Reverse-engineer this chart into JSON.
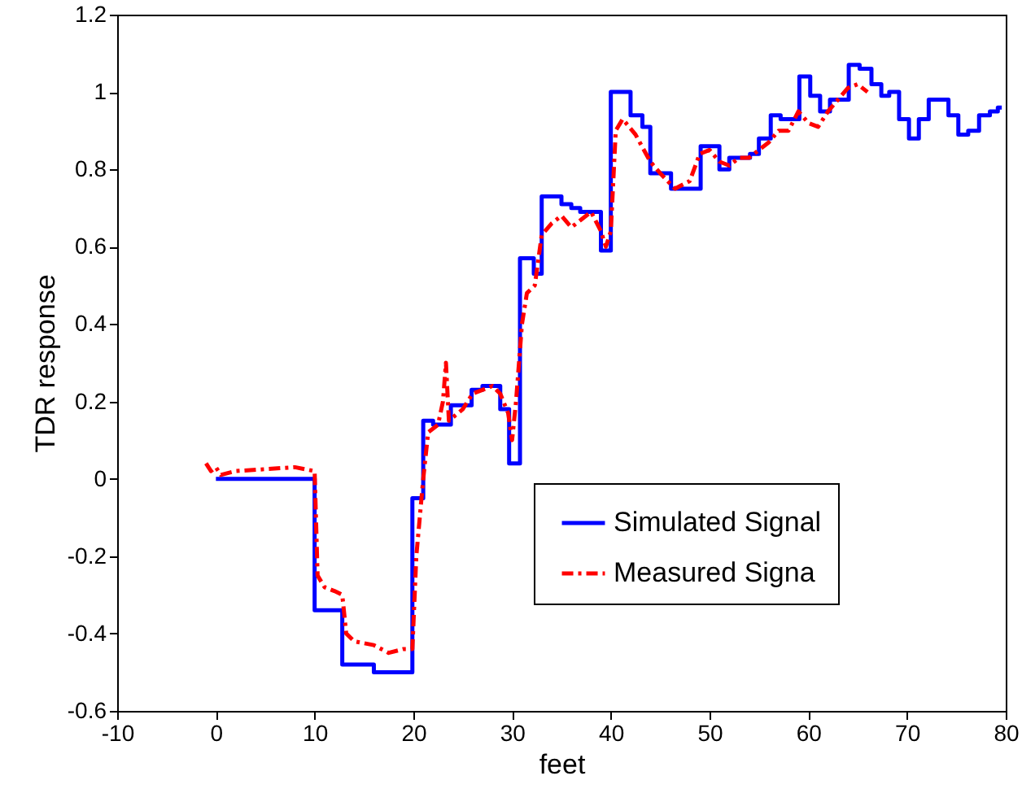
{
  "chart_data": {
    "type": "line",
    "xlabel": "feet",
    "ylabel": "TDR response",
    "xlim": [
      -10,
      80
    ],
    "xticks": [
      -10,
      0,
      10,
      20,
      30,
      40,
      50,
      60,
      70,
      80
    ],
    "ylim": [
      -0.6,
      1.2
    ],
    "yticks": [
      -0.6,
      -0.4,
      -0.2,
      0,
      0.2,
      0.4,
      0.6,
      0.8,
      1,
      1.2
    ],
    "grid": false,
    "legend": "bottom right",
    "series": [
      {
        "name": "Simulated Signal",
        "type": "step",
        "color": "#0000ff",
        "line_style": "solid",
        "x": [
          0,
          10,
          12.8,
          16,
          19.9,
          21,
          22,
          23.8,
          25.9,
          27,
          28.8,
          29.7,
          30.8,
          32.2,
          33,
          35,
          36,
          36.9,
          39,
          40,
          42,
          43.2,
          44,
          46.1,
          49.1,
          51,
          52,
          54.1,
          55,
          56.2,
          57.2,
          59.1,
          60.2,
          61.2,
          62.2,
          64.1,
          65.2,
          66.4,
          67.4,
          68.2,
          69.2,
          70.2,
          71.2,
          72.2,
          74.2,
          75.2,
          76.2,
          77.3,
          78.4,
          79.2,
          79.6
        ],
        "values": [
          0,
          -0.34,
          -0.48,
          -0.5,
          -0.05,
          0.15,
          0.14,
          0.19,
          0.23,
          0.24,
          0.18,
          0.04,
          0.57,
          0.53,
          0.73,
          0.71,
          0.7,
          0.69,
          0.59,
          1.0,
          0.94,
          0.91,
          0.79,
          0.75,
          0.86,
          0.8,
          0.83,
          0.84,
          0.88,
          0.94,
          0.93,
          1.04,
          0.99,
          0.95,
          0.98,
          1.07,
          1.06,
          1.02,
          0.99,
          1.0,
          0.93,
          0.88,
          0.93,
          0.98,
          0.94,
          0.89,
          0.9,
          0.94,
          0.95,
          0.96,
          0.96
        ]
      },
      {
        "name": "Measured Signa",
        "type": "line",
        "color": "#ff0000",
        "line_style": "dashed",
        "x": [
          -1,
          -0.5,
          0,
          0.5,
          2,
          5,
          8,
          10,
          10.3,
          11,
          12,
          12.8,
          13.2,
          14,
          16,
          17.5,
          19,
          19.9,
          20.3,
          21,
          21.5,
          22.5,
          23,
          23.3,
          23.6,
          25,
          26,
          28,
          28.8,
          29.6,
          30,
          30.4,
          31,
          31.5,
          32.3,
          33,
          34,
          35,
          36,
          37,
          38,
          39,
          39.5,
          40,
          40.5,
          41.2,
          42.5,
          44,
          45,
          46.5,
          48,
          49,
          50,
          51,
          52,
          53,
          54,
          55,
          56,
          57,
          58,
          59,
          60,
          61,
          62,
          63,
          64,
          65,
          66
        ],
        "values": [
          0.04,
          0.02,
          0.03,
          0.01,
          0.02,
          0.025,
          0.03,
          0.02,
          -0.25,
          -0.28,
          -0.29,
          -0.3,
          -0.4,
          -0.42,
          -0.43,
          -0.45,
          -0.44,
          -0.44,
          -0.2,
          0.0,
          0.12,
          0.14,
          0.2,
          0.3,
          0.15,
          0.18,
          0.22,
          0.24,
          0.22,
          0.17,
          0.1,
          0.2,
          0.4,
          0.48,
          0.5,
          0.63,
          0.66,
          0.68,
          0.65,
          0.67,
          0.69,
          0.64,
          0.6,
          0.64,
          0.9,
          0.93,
          0.89,
          0.82,
          0.79,
          0.75,
          0.77,
          0.84,
          0.85,
          0.82,
          0.81,
          0.83,
          0.83,
          0.85,
          0.87,
          0.9,
          0.9,
          0.95,
          0.92,
          0.91,
          0.95,
          0.98,
          1.01,
          1.02,
          1.0
        ]
      }
    ]
  }
}
